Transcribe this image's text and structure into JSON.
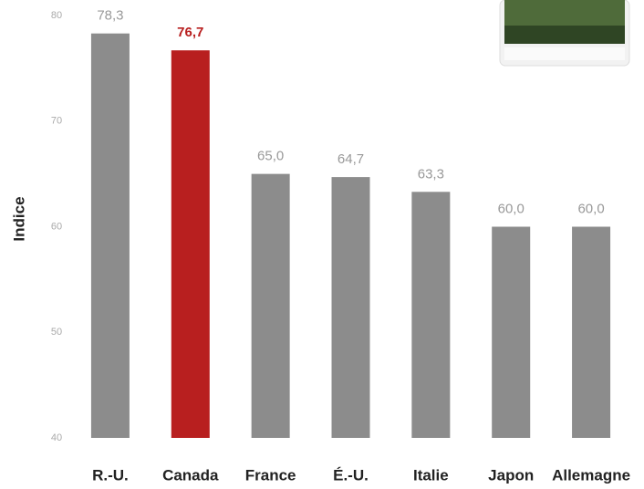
{
  "chart_data": {
    "type": "bar",
    "y_label": "Indice",
    "categories": [
      "R.-U.",
      "Canada",
      "France",
      "É.-U.",
      "Italie",
      "Japon",
      "Allemagne"
    ],
    "values": [
      78.3,
      76.7,
      65.0,
      64.7,
      63.3,
      60.0,
      60.0
    ],
    "value_labels": [
      "78,3",
      "76,7",
      "65,0",
      "64,7",
      "63,3",
      "60,0",
      "60,0"
    ],
    "color": "#8c8c8c",
    "colors": [
      "#8c8c8c",
      "#b81f1f",
      "#8c8c8c",
      "#8c8c8c",
      "#8c8c8c",
      "#8c8c8c",
      "#8c8c8c"
    ],
    "ylim": [
      40,
      80
    ],
    "yticks": [
      40,
      50,
      60,
      70,
      80
    ],
    "grid": false
  }
}
